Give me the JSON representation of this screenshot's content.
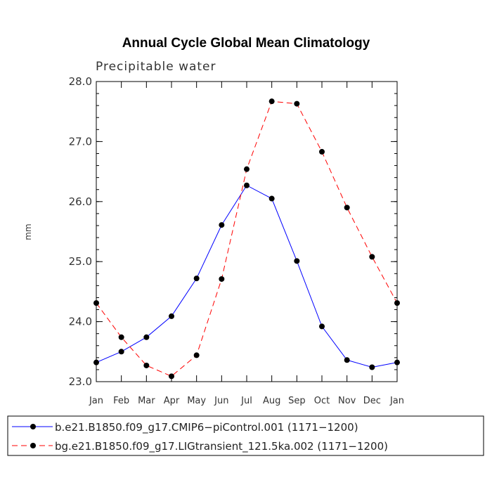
{
  "chart_data": {
    "type": "line",
    "title": "Annual Cycle Global Mean Climatology",
    "subtitle": "Precipitable water",
    "xlabel": "",
    "ylabel": "mm",
    "categories": [
      "Jan",
      "Feb",
      "Mar",
      "Apr",
      "May",
      "Jun",
      "Jul",
      "Aug",
      "Sep",
      "Oct",
      "Nov",
      "Dec",
      "Jan"
    ],
    "ylim": [
      23.0,
      28.0
    ],
    "yticks": [
      23.0,
      24.0,
      25.0,
      26.0,
      27.0,
      28.0
    ],
    "ytick_labels": [
      "23.0",
      "24.0",
      "25.0",
      "26.0",
      "27.0",
      "28.0"
    ],
    "series": [
      {
        "name": "b.e21.B1850.f09_g17.CMIP6−piControl.001 (1171−1200)",
        "color": "#0000ff",
        "dash": "solid",
        "values": [
          23.32,
          23.5,
          23.74,
          24.09,
          24.72,
          25.61,
          26.27,
          26.05,
          25.01,
          23.92,
          23.36,
          23.24,
          23.32
        ]
      },
      {
        "name": "bg.e21.B1850.f09_g17.LIGtransient_121.5ka.002 (1171−1200)",
        "color": "#ff0000",
        "dash": "dashed",
        "values": [
          24.31,
          23.74,
          23.27,
          23.09,
          23.44,
          24.71,
          26.54,
          27.67,
          27.63,
          26.83,
          25.9,
          25.08,
          24.31
        ]
      }
    ],
    "marker_color": "#000000",
    "legend_position": "bottom"
  }
}
